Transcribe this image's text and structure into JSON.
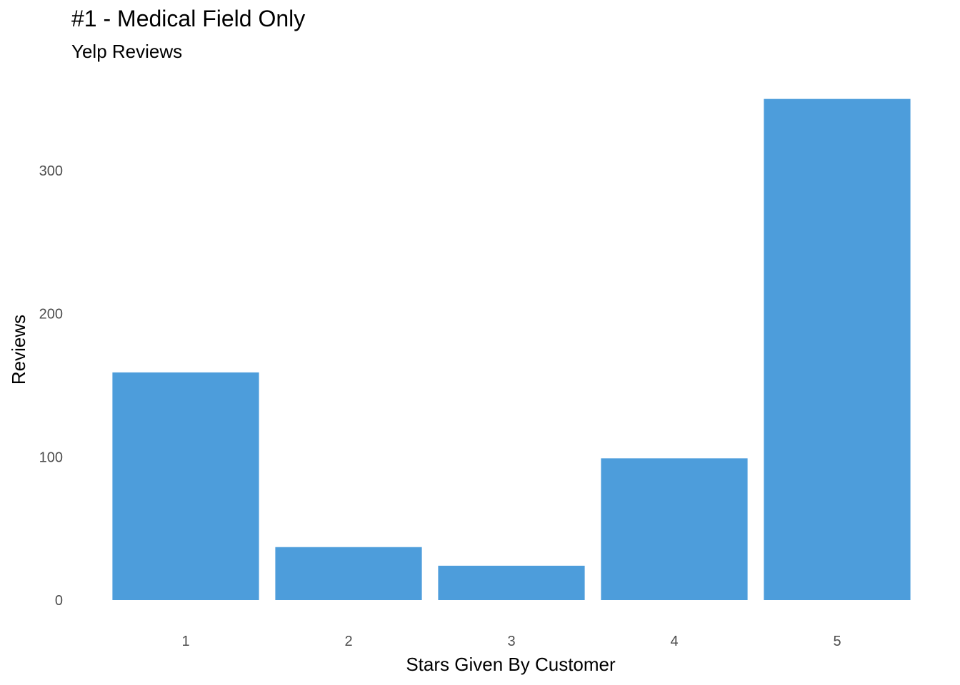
{
  "chart_data": {
    "type": "bar",
    "title": "#1 - Medical Field Only",
    "subtitle": "Yelp Reviews",
    "xlabel": "Stars Given By Customer",
    "ylabel": "Reviews",
    "categories": [
      "1",
      "2",
      "3",
      "4",
      "5"
    ],
    "values": [
      159,
      37,
      24,
      99,
      350
    ],
    "ylim": [
      0,
      350
    ],
    "yticks": [
      0,
      100,
      200,
      300
    ],
    "grid": false,
    "bar_color": "#4d9ddb"
  }
}
